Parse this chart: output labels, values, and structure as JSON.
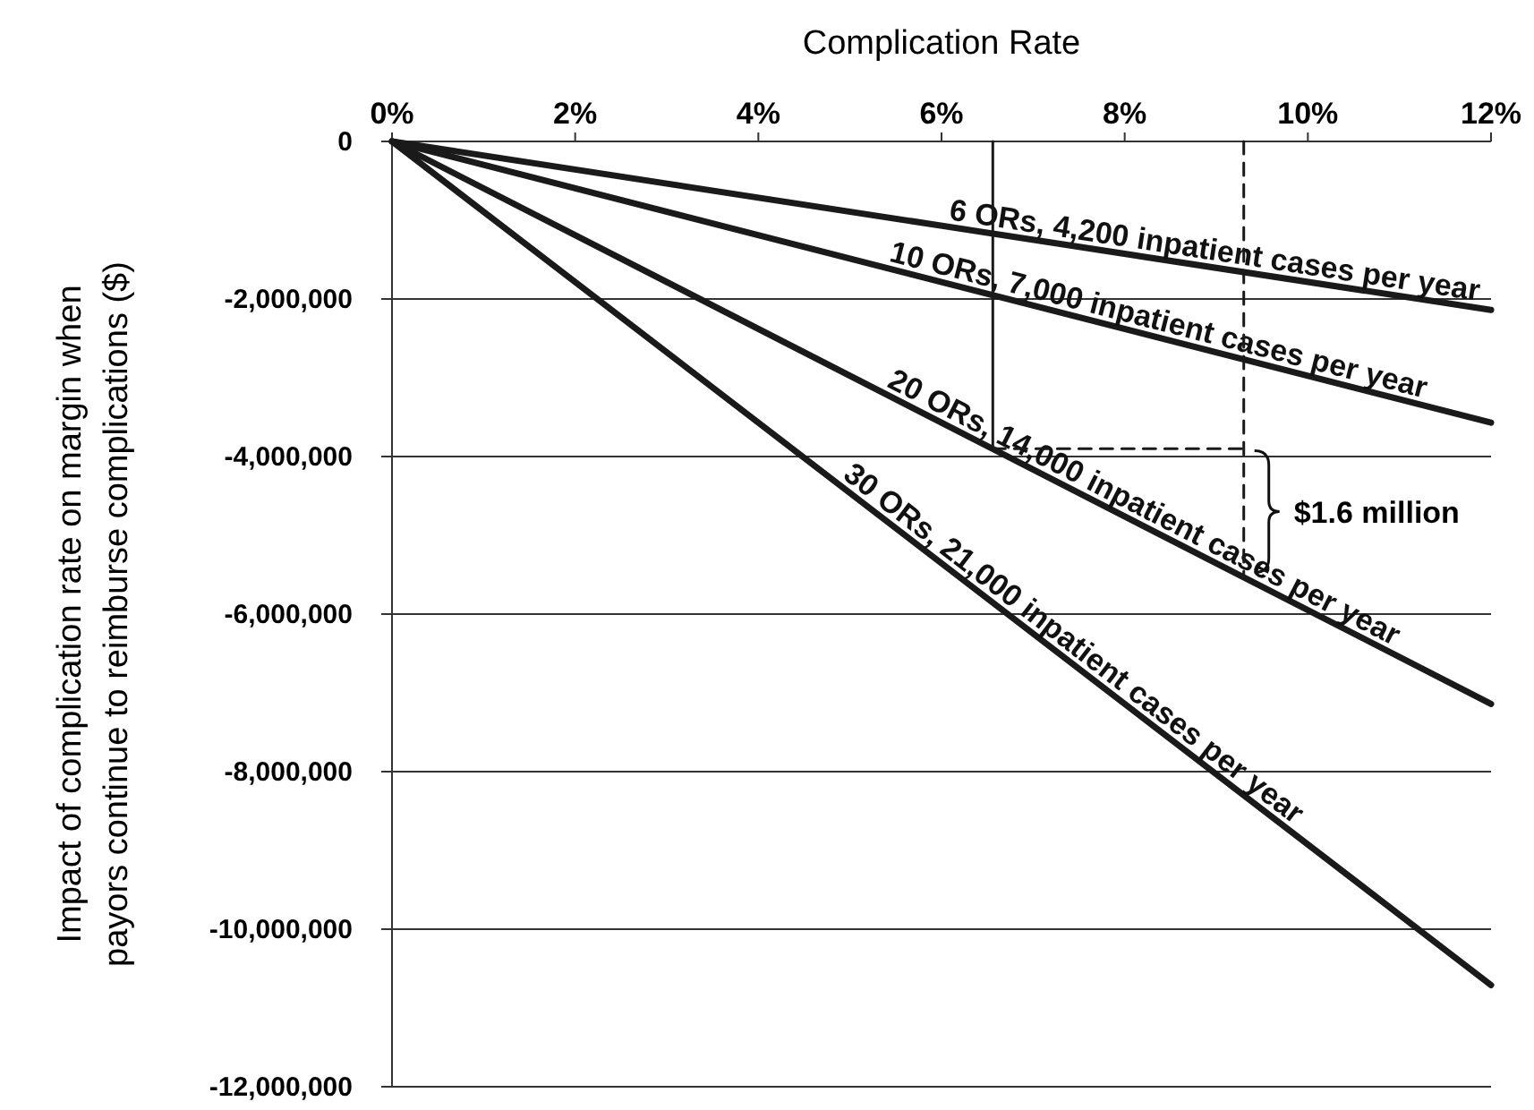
{
  "chart_data": {
    "type": "line",
    "xlabel": "Complication Rate",
    "ylabel": "Impact of complication rate on margin when\npayors continue to reimburse  complications  ($)",
    "xlim": [
      0,
      12
    ],
    "xticks": [
      {
        "value": 0,
        "label": "0%"
      },
      {
        "value": 2,
        "label": "2%"
      },
      {
        "value": 4,
        "label": "4%"
      },
      {
        "value": 6,
        "label": "6%"
      },
      {
        "value": 8,
        "label": "8%"
      },
      {
        "value": 10,
        "label": "10%"
      },
      {
        "value": 12,
        "label": "12%"
      }
    ],
    "ylim": [
      -12000000,
      0
    ],
    "yticks": [
      {
        "value": 0,
        "label": "0"
      },
      {
        "value": -2000000,
        "label": "-2,000,000"
      },
      {
        "value": -4000000,
        "label": "-4,000,000"
      },
      {
        "value": -6000000,
        "label": "-6,000,000"
      },
      {
        "value": -8000000,
        "label": "-8,000,000"
      },
      {
        "value": -10000000,
        "label": "-10,000,000"
      },
      {
        "value": -12000000,
        "label": "-12,000,000"
      }
    ],
    "grid": "y",
    "marker": "none",
    "series": [
      {
        "name": "6 ORs, 4,200 inpatient cases per year",
        "color": "#1a1a1a",
        "x": [
          0,
          12
        ],
        "values": [
          0,
          -2140000
        ]
      },
      {
        "name": "10 ORs, 7,000 inpatient cases per year",
        "color": "#1a1a1a",
        "x": [
          0,
          12
        ],
        "values": [
          0,
          -3570000
        ]
      },
      {
        "name": "20 ORs, 14,000 inpatient cases per year",
        "color": "#1a1a1a",
        "x": [
          0,
          12
        ],
        "values": [
          0,
          -7140000
        ]
      },
      {
        "name": "30 ORs, 21,000 inpatient cases per year",
        "color": "#1a1a1a",
        "x": [
          0,
          12
        ],
        "values": [
          0,
          -10710000
        ]
      },
      {
        "color": "#1a1a1a",
        "x": [
          6.56,
          6.56
        ],
        "values": [
          0,
          -3900000
        ],
        "line_style": "solid"
      },
      {
        "color": "#1a1a1a",
        "x": [
          6.56,
          9.3
        ],
        "values": [
          -3900000,
          -3900000
        ],
        "line_style": "dashed"
      },
      {
        "color": "#1a1a1a",
        "x": [
          9.3,
          9.3
        ],
        "values": [
          0,
          -5530000
        ],
        "line_style": "dashed"
      }
    ],
    "annotations": [
      {
        "text": "$1.6 million",
        "x": 9.3,
        "y": -4700000
      }
    ]
  }
}
